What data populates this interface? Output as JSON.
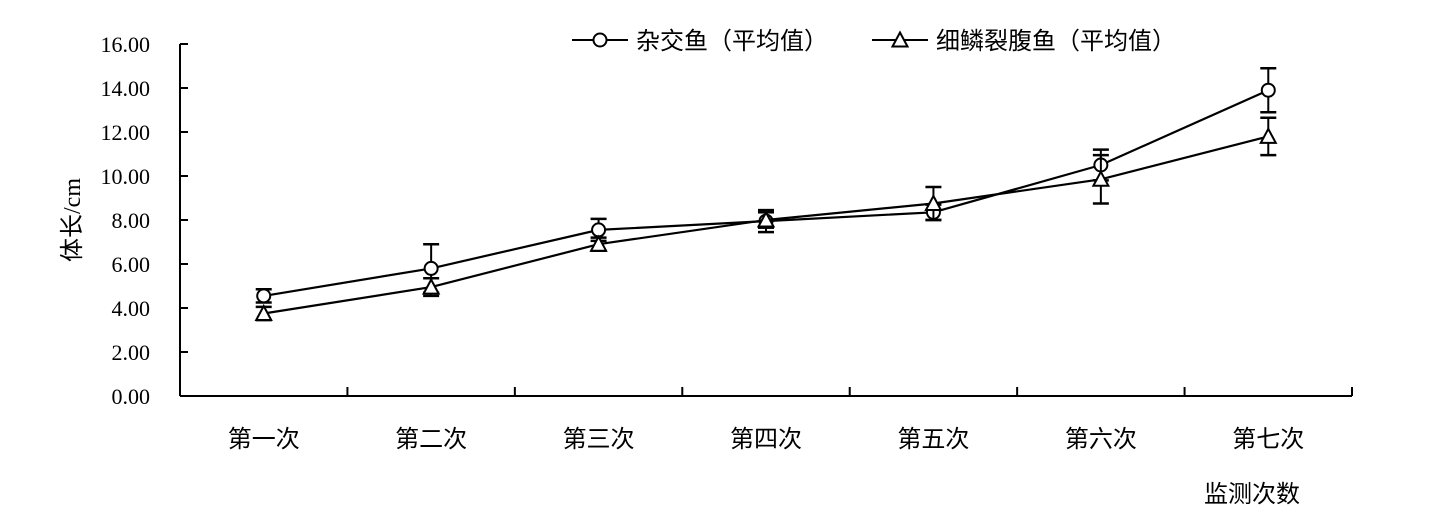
{
  "chart_data": {
    "type": "line",
    "xlabel": "监测次数",
    "ylabel": "体长/cm",
    "ylim": [
      0,
      16
    ],
    "ytick_step": 2,
    "categories": [
      "第一次",
      "第二次",
      "第三次",
      "第四次",
      "第五次",
      "第六次",
      "第七次"
    ],
    "legend_position": "top-right",
    "grid": false,
    "series": [
      {
        "name": "杂交鱼（平均值）",
        "marker": "circle",
        "values": [
          4.55,
          5.8,
          7.55,
          7.95,
          8.35,
          10.5,
          13.9
        ],
        "errors": [
          0.3,
          1.1,
          0.5,
          0.5,
          0.35,
          0.7,
          1.0
        ]
      },
      {
        "name": "细鳞裂腹鱼（平均值）",
        "marker": "triangle",
        "values": [
          3.75,
          4.95,
          6.9,
          8.0,
          8.75,
          9.85,
          11.8
        ],
        "errors": [
          0.3,
          0.4,
          0.3,
          0.35,
          0.75,
          1.1,
          0.85
        ]
      }
    ]
  }
}
